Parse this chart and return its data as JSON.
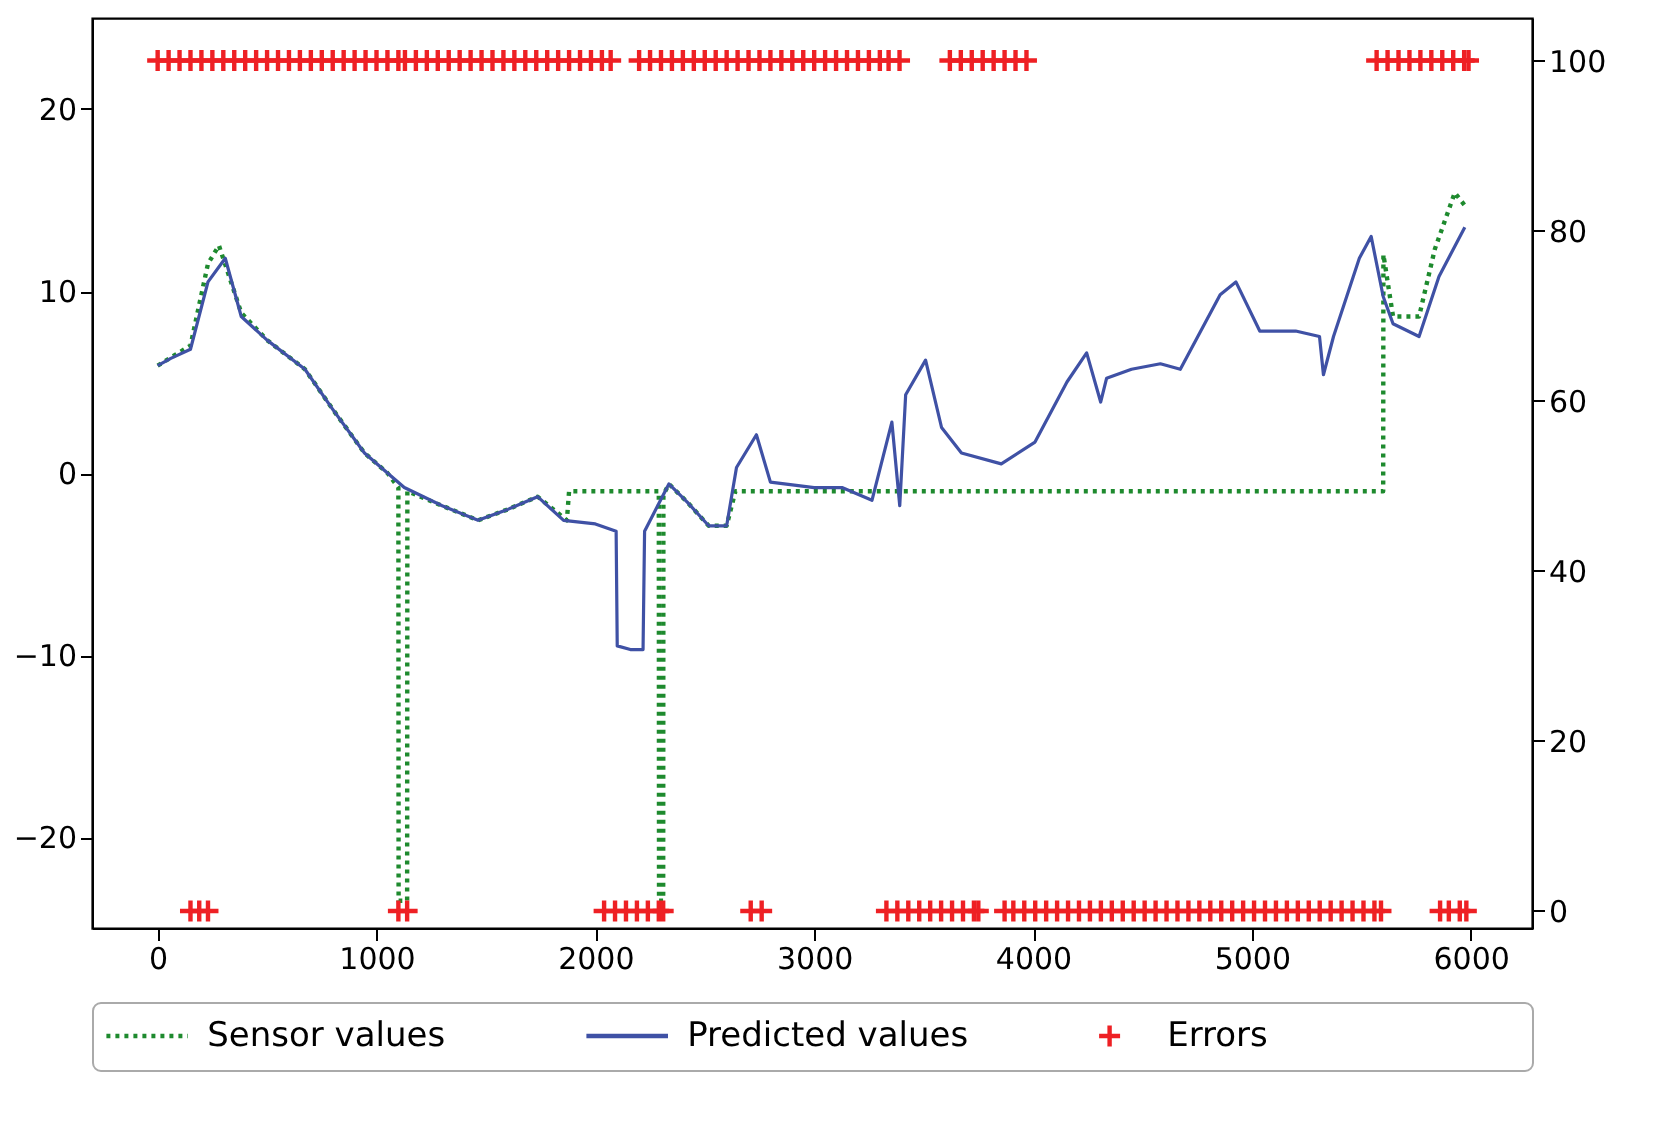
{
  "chart_data": {
    "type": "line",
    "xlim": [
      -300,
      6280
    ],
    "xticks": [
      0,
      1000,
      2000,
      3000,
      4000,
      5000,
      6000
    ],
    "ylim": [
      -25,
      25
    ],
    "yticks": [
      -20,
      -10,
      0,
      10,
      20
    ],
    "y2lim": [
      -2,
      105
    ],
    "y2ticks": [
      0,
      20,
      40,
      60,
      80,
      100
    ],
    "grid": false,
    "legend": "bottom",
    "series": [
      {
        "name": "Sensor values",
        "line_style": "dotted",
        "color": "#1e8a2e",
        "x": [
          0,
          150,
          230,
          280,
          382,
          500,
          673,
          800,
          945,
          1050,
          1100,
          1101,
          1140,
          1141,
          1300,
          1464,
          1600,
          1736,
          1870,
          1880,
          2290,
          2291,
          2310,
          2311,
          2336,
          2420,
          2518,
          2600,
          2640,
          5600,
          5601,
          5645,
          5764,
          5836,
          5927,
          5973
        ],
        "values": [
          5.9,
          7.0,
          11.5,
          12.5,
          8.8,
          7.3,
          5.7,
          3.5,
          1.1,
          0.0,
          -0.8,
          -23.5,
          -23.5,
          -1.0,
          -1.8,
          -2.6,
          -2.0,
          -1.3,
          -2.6,
          -1.0,
          -1.0,
          -23.5,
          -23.5,
          -1.2,
          -0.6,
          -1.6,
          -2.9,
          -2.9,
          -1.0,
          -1.0,
          12.0,
          8.6,
          8.6,
          12.3,
          15.4,
          14.7
        ]
      },
      {
        "name": "Predicted values",
        "line_style": "solid",
        "color": "#3f51a5",
        "x": [
          0,
          60,
          150,
          230,
          309,
          382,
          500,
          673,
          800,
          945,
          1050,
          1127,
          1300,
          1464,
          1600,
          1736,
          1855,
          2000,
          2095,
          2100,
          2160,
          2218,
          2225,
          2336,
          2420,
          2518,
          2600,
          2645,
          2736,
          2800,
          3000,
          3127,
          3264,
          3355,
          3391,
          3418,
          3509,
          3582,
          3673,
          3855,
          4009,
          4155,
          4245,
          4309,
          4336,
          4450,
          4582,
          4673,
          4855,
          4927,
          5036,
          5200,
          5309,
          5327,
          5373,
          5491,
          5545,
          5600,
          5645,
          5764,
          5855,
          5973
        ],
        "values": [
          5.9,
          6.3,
          6.8,
          10.5,
          11.8,
          8.6,
          7.3,
          5.7,
          3.5,
          1.1,
          0.0,
          -0.8,
          -1.8,
          -2.6,
          -2.0,
          -1.3,
          -2.6,
          -2.8,
          -3.2,
          -9.5,
          -9.7,
          -9.7,
          -3.2,
          -0.6,
          -1.6,
          -2.9,
          -2.9,
          0.3,
          2.1,
          -0.5,
          -0.8,
          -0.8,
          -1.5,
          2.8,
          -1.8,
          4.3,
          6.2,
          2.5,
          1.1,
          0.5,
          1.7,
          5.0,
          6.6,
          3.9,
          5.2,
          5.7,
          6.0,
          5.7,
          9.8,
          10.5,
          7.8,
          7.8,
          7.5,
          5.4,
          7.5,
          11.8,
          13.0,
          9.7,
          8.2,
          7.5,
          10.8,
          13.5
        ]
      },
      {
        "name": "Errors",
        "type": "scatter",
        "marker": "cross",
        "axis": "y2",
        "color": "#ee2024",
        "x": [
          0,
          50,
          100,
          150,
          200,
          250,
          300,
          350,
          400,
          450,
          500,
          550,
          600,
          650,
          700,
          750,
          800,
          850,
          900,
          950,
          1000,
          1050,
          1100,
          1130,
          1180,
          1230,
          1280,
          1330,
          1380,
          1430,
          1480,
          1530,
          1580,
          1630,
          1680,
          1730,
          1780,
          1830,
          1880,
          1930,
          1980,
          2030,
          2070,
          2200,
          2250,
          2300,
          2350,
          2400,
          2450,
          2500,
          2550,
          2600,
          2650,
          2700,
          2750,
          2800,
          2850,
          2900,
          2950,
          3000,
          3050,
          3100,
          3150,
          3200,
          3250,
          3300,
          3340,
          3390,
          3620,
          3670,
          3720,
          3770,
          3820,
          3870,
          3920,
          3970,
          5570,
          5620,
          5670,
          5720,
          5770,
          5820,
          5870,
          5920,
          5970,
          5990,
          150,
          190,
          230,
          1100,
          1140,
          2040,
          2090,
          2140,
          2190,
          2240,
          2290,
          2310,
          2710,
          2760,
          3330,
          3380,
          3430,
          3480,
          3530,
          3580,
          3630,
          3680,
          3730,
          3750,
          3870,
          3910,
          3960,
          4010,
          4060,
          4110,
          4160,
          4210,
          4260,
          4310,
          4360,
          4410,
          4460,
          4510,
          4560,
          4610,
          4660,
          4710,
          4760,
          4810,
          4860,
          4910,
          4960,
          5010,
          5060,
          5110,
          5160,
          5210,
          5260,
          5310,
          5360,
          5410,
          5460,
          5510,
          5560,
          5590,
          5860,
          5900,
          5950,
          5980
        ],
        "values": [
          100,
          100,
          100,
          100,
          100,
          100,
          100,
          100,
          100,
          100,
          100,
          100,
          100,
          100,
          100,
          100,
          100,
          100,
          100,
          100,
          100,
          100,
          100,
          100,
          100,
          100,
          100,
          100,
          100,
          100,
          100,
          100,
          100,
          100,
          100,
          100,
          100,
          100,
          100,
          100,
          100,
          100,
          100,
          100,
          100,
          100,
          100,
          100,
          100,
          100,
          100,
          100,
          100,
          100,
          100,
          100,
          100,
          100,
          100,
          100,
          100,
          100,
          100,
          100,
          100,
          100,
          100,
          100,
          100,
          100,
          100,
          100,
          100,
          100,
          100,
          100,
          100,
          100,
          100,
          100,
          100,
          100,
          100,
          100,
          100,
          100,
          0,
          0,
          0,
          0,
          0,
          0,
          0,
          0,
          0,
          0,
          0,
          0,
          0,
          0,
          0,
          0,
          0,
          0,
          0,
          0,
          0,
          0,
          0,
          0,
          0,
          0,
          0,
          0,
          0,
          0,
          0,
          0,
          0,
          0,
          0,
          0,
          0,
          0,
          0,
          0,
          0,
          0,
          0,
          0,
          0,
          0,
          0,
          0,
          0,
          0,
          0,
          0,
          0,
          0,
          0,
          0,
          0,
          0,
          0,
          0,
          0,
          0,
          0,
          0
        ]
      }
    ]
  }
}
